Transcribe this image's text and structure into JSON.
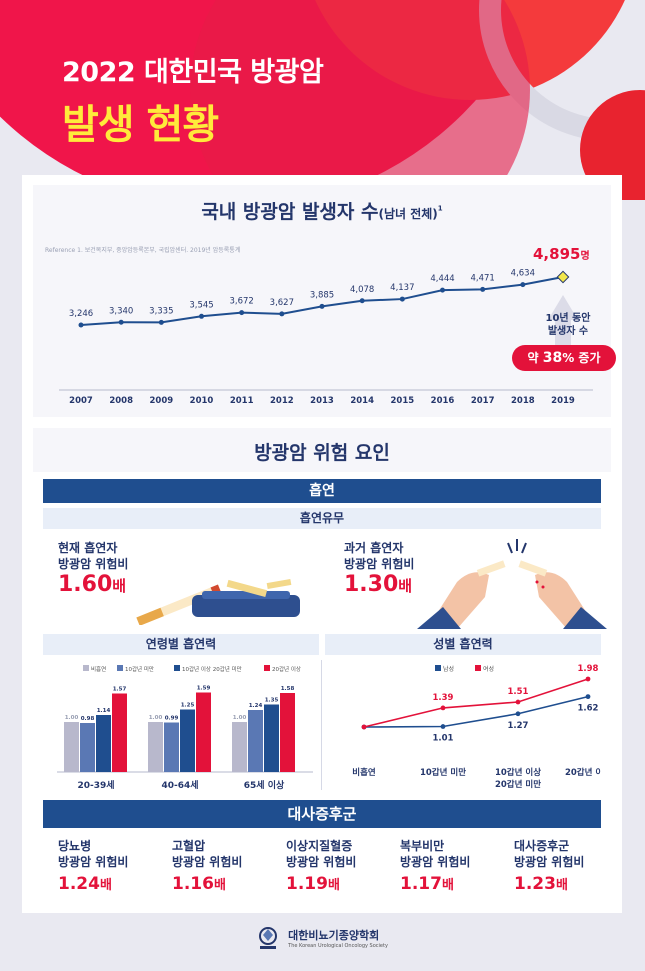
{
  "header": {
    "title_year": "2022 대한민국 방광암",
    "title_main": "발생 현황"
  },
  "incidence": {
    "title": "국내 방광암 발생자 수",
    "title_sub": "(남녀 전체)",
    "title_sup": "1",
    "reference": "Reference 1. 보건복지부, 중앙암등록본부, 국립암센터. 2019년 암등록통계",
    "highlight_value": "4,895",
    "highlight_unit": "명",
    "note_line1": "10년 동안",
    "note_line2": "발생자 수",
    "increase_pre": "약 ",
    "increase_num": "38",
    "increase_post": "% 증가"
  },
  "risk": {
    "title": "방광암 위험 요인"
  },
  "smoking": {
    "title": "흡연",
    "status_title": "흡연유무",
    "current_l1": "현재 흡연자",
    "current_l2": "방광암 위험비",
    "current_val": "1.60",
    "current_unit": "배",
    "past_l1": "과거 흡연자",
    "past_l2": "방광암 위험비",
    "past_val": "1.30",
    "past_unit": "배",
    "age_title": "연령별 흡연력",
    "sex_title": "성별 흡연력"
  },
  "metabolic": {
    "title": "대사증후군",
    "items": [
      {
        "l1": "당뇨병",
        "l2": "방광암 위험비",
        "val": "1.24",
        "unit": "배"
      },
      {
        "l1": "고혈압",
        "l2": "방광암 위험비",
        "val": "1.16",
        "unit": "배"
      },
      {
        "l1": "이상지질혈증",
        "l2": "방광암 위험비",
        "val": "1.19",
        "unit": "배"
      },
      {
        "l1": "복부비만",
        "l2": "방광암 위험비",
        "val": "1.17",
        "unit": "배"
      },
      {
        "l1": "대사증후군",
        "l2": "방광암 위험비",
        "val": "1.23",
        "unit": "배"
      }
    ]
  },
  "footer": {
    "org_ko": "대한비뇨기종양학회",
    "org_en": "The Korean Urological Oncology Society"
  },
  "colors": {
    "red": "#e3123a",
    "navy": "#1f4e8f",
    "blue": "#5a78b4",
    "gray": "#b8b8cc"
  },
  "chart_data": [
    {
      "type": "line",
      "categories": [
        "2007",
        "2008",
        "2009",
        "2010",
        "2011",
        "2012",
        "2013",
        "2014",
        "2015",
        "2016",
        "2017",
        "2018",
        "2019"
      ],
      "series": [
        {
          "values": [
            3246,
            3340,
            3335,
            3545,
            3672,
            3627,
            3885,
            4078,
            4137,
            4444,
            4471,
            4634,
            4895
          ]
        }
      ],
      "labels": [
        "3,246",
        "3,340",
        "3,335",
        "3,545",
        "3,672",
        "3,627",
        "3,885",
        "4,078",
        "4,137",
        "4,444",
        "4,471",
        "4,634",
        "4,895"
      ]
    },
    {
      "type": "bar",
      "categories": [
        "20-39세",
        "40-64세",
        "65세 이상"
      ],
      "legend": [
        "비흡연",
        "10갑년 미만",
        "10갑년 이상 20갑년 미만",
        "20갑년 이상"
      ],
      "series": [
        {
          "name": "비흡연",
          "values": [
            1.0,
            1.0,
            1.0
          ],
          "labels": [
            "1.00",
            "1.00",
            "1.00"
          ],
          "color": "#b8b8cc"
        },
        {
          "name": "10갑년 미만",
          "values": [
            0.98,
            0.99,
            1.24
          ],
          "labels": [
            "0.98",
            "0.99",
            "1.24"
          ],
          "color": "#5a78b4"
        },
        {
          "name": "10갑년 이상 20갑년 미만",
          "values": [
            1.14,
            1.25,
            1.35
          ],
          "labels": [
            "1.14",
            "1.25",
            "1.35"
          ],
          "color": "#1f4e8f"
        },
        {
          "name": "20갑년 이상",
          "values": [
            1.57,
            1.59,
            1.58
          ],
          "labels": [
            "1.57",
            "1.59",
            "1.58"
          ],
          "color": "#e3123a"
        }
      ]
    },
    {
      "type": "line",
      "categories": [
        "비흡연",
        "10갑년 미만",
        "10갑년 이상|20갑년 미만",
        "20갑년 이상"
      ],
      "legend": [
        "남성",
        "여성"
      ],
      "series": [
        {
          "name": "남성",
          "values": [
            1.0,
            1.01,
            1.27,
            1.62
          ],
          "labels": [
            "",
            "1.01",
            "1.27",
            "1.62"
          ],
          "color": "#1f4e8f"
        },
        {
          "name": "여성",
          "values": [
            1.0,
            1.39,
            1.51,
            1.98
          ],
          "labels": [
            "",
            "1.39",
            "1.51",
            "1.98"
          ],
          "color": "#e3123a"
        }
      ]
    }
  ]
}
